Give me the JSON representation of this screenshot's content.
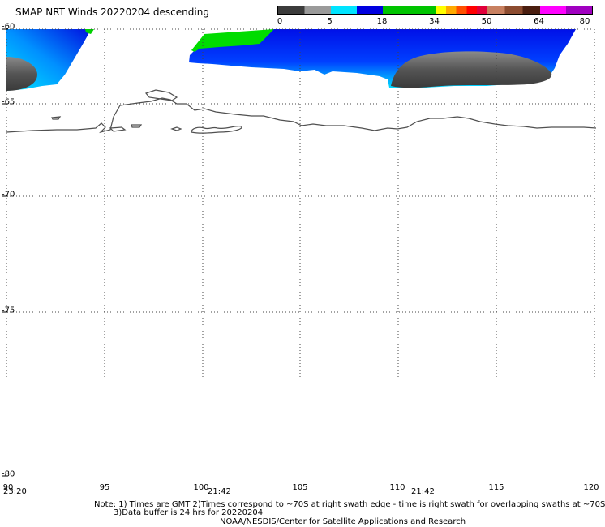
{
  "title": "SMAP NRT Winds  20220204 descending",
  "color_scale": {
    "segments": [
      {
        "from": 0,
        "to": 5,
        "colors": [
          "#3c3c3c",
          "#9a9a9a"
        ]
      },
      {
        "from": 5,
        "to": 18,
        "colors": [
          "#00e4ff",
          "#0000e0"
        ]
      },
      {
        "from": 18,
        "to": 34,
        "colors": [
          "#00c400"
        ]
      },
      {
        "from": 34,
        "to": 50,
        "colors": [
          "#ffff00",
          "#ffaa00",
          "#ff5000",
          "#ff0000",
          "#e0003a"
        ]
      },
      {
        "from": 50,
        "to": 64,
        "colors": [
          "#c88060",
          "#8c4c30",
          "#4a1e10"
        ]
      },
      {
        "from": 64,
        "to": 80,
        "colors": [
          "#ff00ff",
          "#a000c0"
        ]
      }
    ],
    "ticks": [
      "0",
      "5",
      "18",
      "34",
      "50",
      "64",
      "80"
    ]
  },
  "axes": {
    "lat_labels": [
      "-60",
      "-65",
      "-70",
      "-75",
      "-80"
    ],
    "lon_labels": [
      "90",
      "95",
      "100",
      "105",
      "110",
      "115",
      "120"
    ],
    "time_labels": [
      "23:20",
      "21:42",
      "21:42"
    ]
  },
  "notes": [
    "Note: 1) Times are GMT 2)Times correspond to ~70S at right swath edge - time is right swath for overlapping swaths at ~70S",
    "3)Data buffer is 24 hrs for 20220204",
    "NOAA/NESDIS/Center for Satellite Applications and Research"
  ]
}
